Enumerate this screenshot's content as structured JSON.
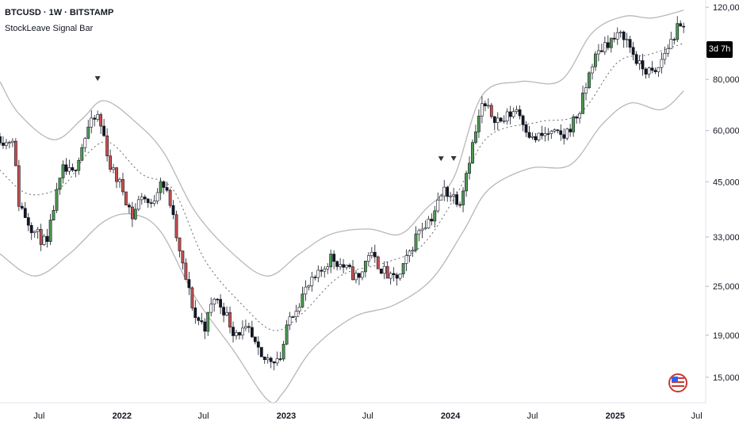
{
  "header": {
    "symbol_line": "BTCUSD · 1W · BITSTAMP",
    "indicator_name": "StockLeave Signal Bar"
  },
  "countdown": "3d 7h",
  "colors": {
    "up_signal": "#4c9a50",
    "down_signal": "#c94f4f",
    "band": "#b8b8b8",
    "candle": "#131722"
  },
  "chart_data": {
    "type": "candlestick",
    "title": "",
    "y_scale": "log",
    "ylim": [
      13000,
      125000
    ],
    "y_ticks": [
      120000,
      80000,
      60000,
      45000,
      33000,
      25000,
      19000,
      15000
    ],
    "y_tick_labels": [
      "120,000",
      "80,000",
      "60,000",
      "45,000",
      "33,000",
      "25,000",
      "19,000",
      "15,000"
    ],
    "x_range": [
      "2021-04-05",
      "2025-07-21"
    ],
    "x_ticks": [
      {
        "date": "2021-07-01",
        "label": "Jul",
        "bold": false
      },
      {
        "date": "2022-01-01",
        "label": "2022",
        "bold": true
      },
      {
        "date": "2022-07-01",
        "label": "Jul",
        "bold": false
      },
      {
        "date": "2023-01-01",
        "label": "2023",
        "bold": true
      },
      {
        "date": "2023-07-01",
        "label": "Jul",
        "bold": false
      },
      {
        "date": "2024-01-01",
        "label": "2024",
        "bold": true
      },
      {
        "date": "2024-07-01",
        "label": "Jul",
        "bold": false
      },
      {
        "date": "2025-01-01",
        "label": "2025",
        "bold": true
      },
      {
        "date": "2025-07-01",
        "label": "Jul",
        "bold": false
      }
    ],
    "grid": false,
    "price_path": [
      [
        "2021-04-05",
        58000
      ],
      [
        "2021-04-19",
        56000
      ],
      [
        "2021-05-03",
        58000
      ],
      [
        "2021-05-17",
        40000
      ],
      [
        "2021-06-07",
        36000
      ],
      [
        "2021-06-21",
        34000
      ],
      [
        "2021-07-19",
        31500
      ],
      [
        "2021-08-02",
        39000
      ],
      [
        "2021-08-23",
        48000
      ],
      [
        "2021-09-13",
        47000
      ],
      [
        "2021-10-04",
        55000
      ],
      [
        "2021-10-18",
        61000
      ],
      [
        "2021-11-08",
        65000
      ],
      [
        "2021-11-22",
        58000
      ],
      [
        "2021-12-06",
        49000
      ],
      [
        "2022-01-03",
        43000
      ],
      [
        "2022-01-24",
        37000
      ],
      [
        "2022-02-14",
        42000
      ],
      [
        "2022-03-07",
        39000
      ],
      [
        "2022-03-28",
        46000
      ],
      [
        "2022-04-18",
        40000
      ],
      [
        "2022-05-09",
        30000
      ],
      [
        "2022-06-13",
        21000
      ],
      [
        "2022-07-04",
        20000
      ],
      [
        "2022-07-25",
        23500
      ],
      [
        "2022-08-15",
        22000
      ],
      [
        "2022-09-05",
        19500
      ],
      [
        "2022-10-10",
        19300
      ],
      [
        "2022-11-07",
        16500
      ],
      [
        "2022-12-19",
        16800
      ],
      [
        "2023-01-09",
        21000
      ],
      [
        "2023-02-13",
        24500
      ],
      [
        "2023-03-13",
        26500
      ],
      [
        "2023-04-10",
        29500
      ],
      [
        "2023-06-12",
        26000
      ],
      [
        "2023-07-03",
        30200
      ],
      [
        "2023-08-21",
        26000
      ],
      [
        "2023-09-11",
        26500
      ],
      [
        "2023-10-23",
        34500
      ],
      [
        "2023-11-20",
        37000
      ],
      [
        "2023-12-18",
        43000
      ],
      [
        "2024-01-22",
        40500
      ],
      [
        "2024-02-12",
        51500
      ],
      [
        "2024-03-11",
        69000
      ],
      [
        "2024-04-22",
        63000
      ],
      [
        "2024-05-27",
        68000
      ],
      [
        "2024-07-01",
        57000
      ],
      [
        "2024-08-05",
        59000
      ],
      [
        "2024-09-09",
        58000
      ],
      [
        "2024-10-14",
        67000
      ],
      [
        "2024-11-11",
        88000
      ],
      [
        "2024-12-09",
        98000
      ],
      [
        "2025-01-20",
        103000
      ],
      [
        "2025-02-24",
        86000
      ],
      [
        "2025-03-31",
        82000
      ],
      [
        "2025-04-21",
        93000
      ],
      [
        "2025-05-19",
        106000
      ],
      [
        "2025-06-02",
        106000
      ]
    ],
    "signal_markers": [
      "2021-11-08",
      "2023-12-11",
      "2024-01-08"
    ],
    "bands": {
      "upper": [
        [
          "2021-04-05",
          79000
        ],
        [
          "2021-05-17",
          66000
        ],
        [
          "2021-08-02",
          57000
        ],
        [
          "2021-10-04",
          64000
        ],
        [
          "2021-11-22",
          71000
        ],
        [
          "2022-01-31",
          63000
        ],
        [
          "2022-04-04",
          53000
        ],
        [
          "2022-06-13",
          38000
        ],
        [
          "2022-09-05",
          30000
        ],
        [
          "2022-11-21",
          26500
        ],
        [
          "2023-01-30",
          30000
        ],
        [
          "2023-04-10",
          33500
        ],
        [
          "2023-07-03",
          34500
        ],
        [
          "2023-09-11",
          33500
        ],
        [
          "2023-11-06",
          38500
        ],
        [
          "2024-01-08",
          46000
        ],
        [
          "2024-03-11",
          73000
        ],
        [
          "2024-06-03",
          79000
        ],
        [
          "2024-09-02",
          79500
        ],
        [
          "2024-11-11",
          104000
        ],
        [
          "2025-01-20",
          114000
        ],
        [
          "2025-03-24",
          113000
        ],
        [
          "2025-06-02",
          118000
        ]
      ],
      "middle": [
        [
          "2021-04-05",
          48000
        ],
        [
          "2021-06-07",
          42000
        ],
        [
          "2021-08-23",
          44000
        ],
        [
          "2021-10-18",
          53000
        ],
        [
          "2021-12-06",
          56000
        ],
        [
          "2022-02-14",
          47000
        ],
        [
          "2022-04-25",
          43000
        ],
        [
          "2022-07-04",
          29000
        ],
        [
          "2022-09-26",
          22500
        ],
        [
          "2022-12-05",
          19500
        ],
        [
          "2023-02-06",
          21500
        ],
        [
          "2023-05-01",
          26500
        ],
        [
          "2023-08-07",
          28500
        ],
        [
          "2023-10-30",
          31500
        ],
        [
          "2024-01-15",
          42000
        ],
        [
          "2024-03-25",
          58000
        ],
        [
          "2024-07-15",
          63000
        ],
        [
          "2024-10-14",
          66000
        ],
        [
          "2025-01-06",
          88000
        ],
        [
          "2025-03-17",
          92000
        ],
        [
          "2025-06-02",
          98000
        ]
      ],
      "lower": [
        [
          "2021-04-05",
          30000
        ],
        [
          "2021-06-21",
          26500
        ],
        [
          "2021-09-06",
          30000
        ],
        [
          "2021-11-22",
          36000
        ],
        [
          "2022-01-24",
          37500
        ],
        [
          "2022-03-28",
          34000
        ],
        [
          "2022-06-13",
          23500
        ],
        [
          "2022-09-05",
          17500
        ],
        [
          "2022-11-21",
          13200
        ],
        [
          "2022-12-26",
          13800
        ],
        [
          "2023-02-27",
          17500
        ],
        [
          "2023-05-29",
          21000
        ],
        [
          "2023-08-28",
          22500
        ],
        [
          "2023-11-20",
          26000
        ],
        [
          "2024-01-29",
          34000
        ],
        [
          "2024-03-25",
          43000
        ],
        [
          "2024-06-24",
          48500
        ],
        [
          "2024-09-23",
          49500
        ],
        [
          "2024-12-02",
          62000
        ],
        [
          "2025-02-03",
          70000
        ],
        [
          "2025-04-14",
          67500
        ],
        [
          "2025-06-02",
          75000
        ]
      ]
    }
  }
}
